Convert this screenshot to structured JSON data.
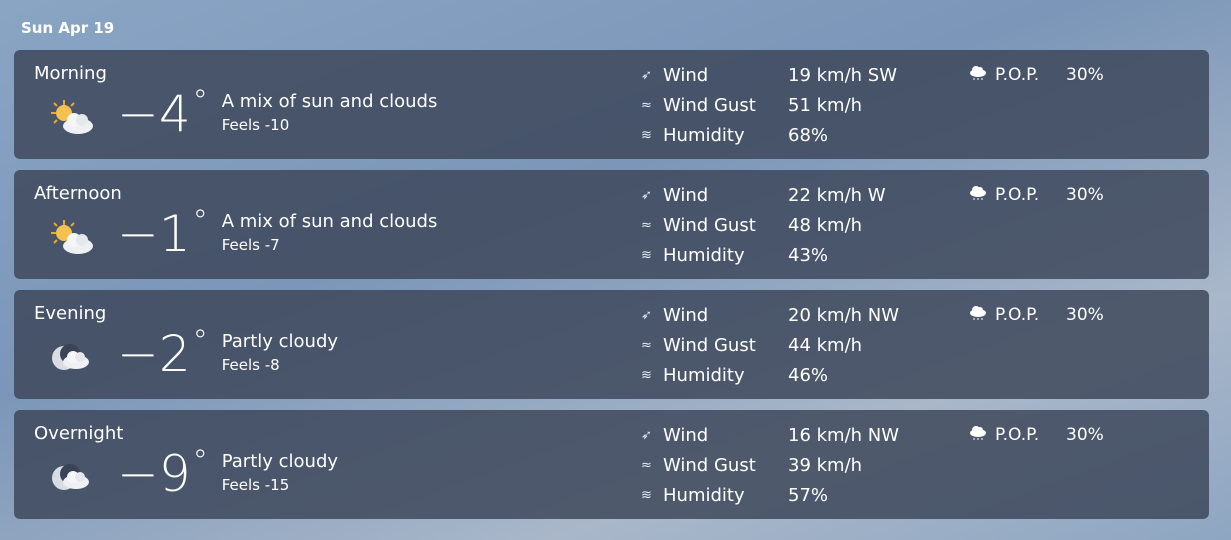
{
  "date": "Sun Apr 19",
  "labels": {
    "wind": "Wind",
    "gust": "Wind Gust",
    "humidity": "Humidity",
    "pop": "P.O.P."
  },
  "periods": [
    {
      "name": "Morning",
      "icon": "sun-cloud-icon",
      "temp": "−4",
      "deg": "°",
      "desc": "A mix of sun and clouds",
      "feels": "Feels -10",
      "wind": "19 km/h SW",
      "gust": "51 km/h",
      "humidity": "68%",
      "pop": "30%"
    },
    {
      "name": "Afternoon",
      "icon": "sun-cloud-icon",
      "temp": "−1",
      "deg": "°",
      "desc": "A mix of sun and clouds",
      "feels": "Feels -7",
      "wind": "22 km/h W",
      "gust": "48 km/h",
      "humidity": "43%",
      "pop": "30%"
    },
    {
      "name": "Evening",
      "icon": "moon-cloud-icon",
      "temp": "−2",
      "deg": "°",
      "desc": "Partly cloudy",
      "feels": "Feels -8",
      "wind": "20 km/h NW",
      "gust": "44 km/h",
      "humidity": "46%",
      "pop": "30%"
    },
    {
      "name": "Overnight",
      "icon": "moon-cloud-icon",
      "temp": "−9",
      "deg": "°",
      "desc": "Partly cloudy",
      "feels": "Feels -15",
      "wind": "16 km/h NW",
      "gust": "39 km/h",
      "humidity": "57%",
      "pop": "30%"
    }
  ]
}
